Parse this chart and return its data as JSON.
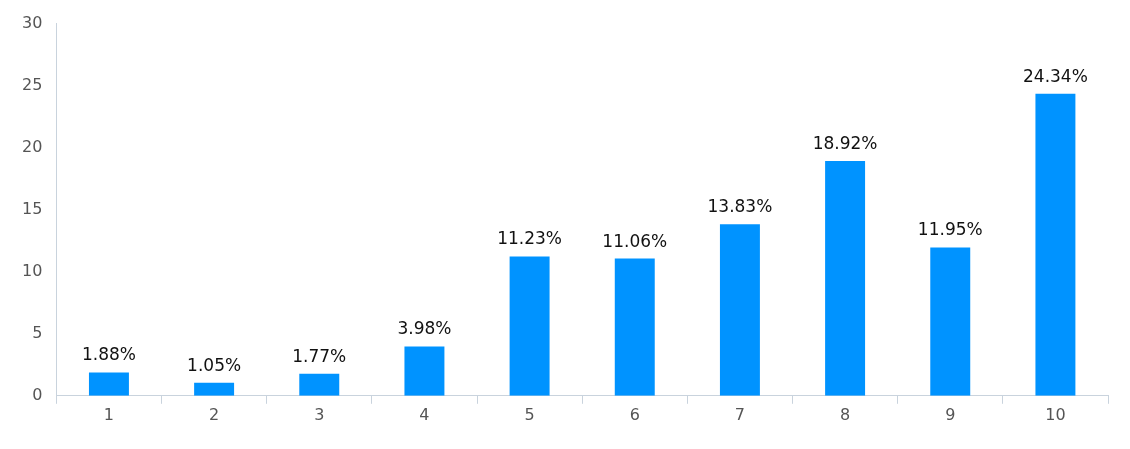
{
  "chart_data": {
    "type": "bar",
    "categories": [
      "1",
      "2",
      "3",
      "4",
      "5",
      "6",
      "7",
      "8",
      "9",
      "10"
    ],
    "values": [
      1.88,
      1.05,
      1.77,
      3.98,
      11.23,
      11.06,
      13.83,
      18.92,
      11.95,
      24.34
    ],
    "value_labels": [
      "1.88%",
      "1.05%",
      "1.77%",
      "3.98%",
      "11.23%",
      "11.06%",
      "13.83%",
      "18.92%",
      "11.95%",
      "24.34%"
    ],
    "color": "#0093ff",
    "ylim": [
      0,
      30
    ],
    "yticks": [
      0,
      5,
      10,
      15,
      20,
      25,
      30
    ],
    "grid": false,
    "legend": false
  }
}
